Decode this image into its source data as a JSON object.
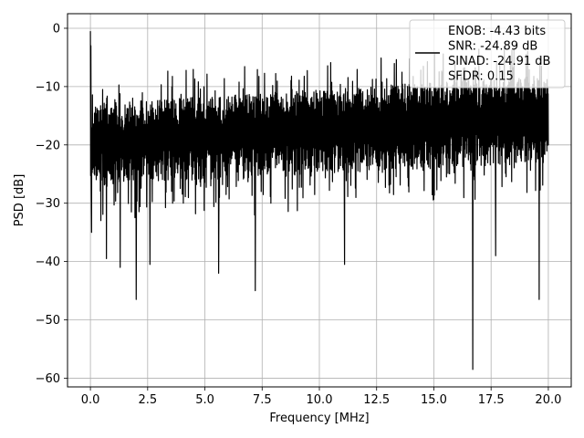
{
  "chart_data": {
    "type": "line",
    "xlabel": "Frequency [MHz]",
    "ylabel": "PSD [dB]",
    "xlim": [
      -1.0,
      21.0
    ],
    "ylim": [
      -61.5,
      2.5
    ],
    "grid": true,
    "legend_position": "top-right",
    "x_ticks": [
      0.0,
      2.5,
      5.0,
      7.5,
      10.0,
      12.5,
      15.0,
      17.5,
      20.0
    ],
    "x_tick_labels": [
      "0.0",
      "2.5",
      "5.0",
      "7.5",
      "10.0",
      "12.5",
      "15.0",
      "17.5",
      "20.0"
    ],
    "y_ticks": [
      0,
      -10,
      -20,
      -30,
      -40,
      -50,
      -60
    ],
    "y_tick_labels": [
      "0",
      "−10",
      "−20",
      "−30",
      "−40",
      "−50",
      "−60"
    ],
    "series": [
      {
        "color": "#000000",
        "x_start": 0.0,
        "x_end": 20.0,
        "noise_seed": 7,
        "upper_band_start": -13,
        "upper_band_end": -8,
        "lower_band_start": -27,
        "lower_band_end": -23,
        "peaks": [
          {
            "x": 0.0,
            "y": -0.5
          },
          {
            "x": 0.02,
            "y": -3.0
          }
        ],
        "dips": [
          {
            "x": 0.05,
            "y": -35.0
          },
          {
            "x": 0.7,
            "y": -39.5
          },
          {
            "x": 1.3,
            "y": -41.0
          },
          {
            "x": 2.0,
            "y": -46.5
          },
          {
            "x": 2.6,
            "y": -40.5
          },
          {
            "x": 5.6,
            "y": -42.0
          },
          {
            "x": 7.2,
            "y": -45.0
          },
          {
            "x": 11.1,
            "y": -40.5
          },
          {
            "x": 16.7,
            "y": -58.5
          },
          {
            "x": 17.7,
            "y": -39.0
          },
          {
            "x": 19.6,
            "y": -46.5
          }
        ]
      }
    ],
    "legend": {
      "lines": [
        "ENOB: -4.43 bits",
        "SNR: -24.89 dB",
        "SINAD: -24.91 dB",
        "SFDR: 0.15"
      ]
    }
  }
}
